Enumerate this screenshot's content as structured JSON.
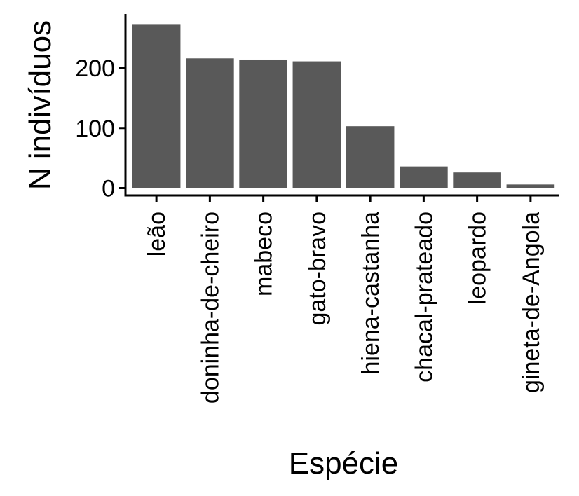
{
  "chart_data": {
    "type": "bar",
    "title": "",
    "xlabel": "Espécie",
    "ylabel": "N indivíduos",
    "categories": [
      "leão",
      "doninha-de-cheiro",
      "mabeco",
      "gato-bravo",
      "hiena-castanha",
      "chacal-prateado",
      "leopardo",
      "gineta-de-Angola"
    ],
    "values": [
      273,
      216,
      214,
      211,
      103,
      36,
      26,
      6
    ],
    "yticks": [
      "0",
      "100",
      "200"
    ],
    "ylim": [
      0,
      278
    ],
    "grid": false,
    "legend": "none",
    "bar_color": "#595959",
    "axis_color": "#000000"
  }
}
